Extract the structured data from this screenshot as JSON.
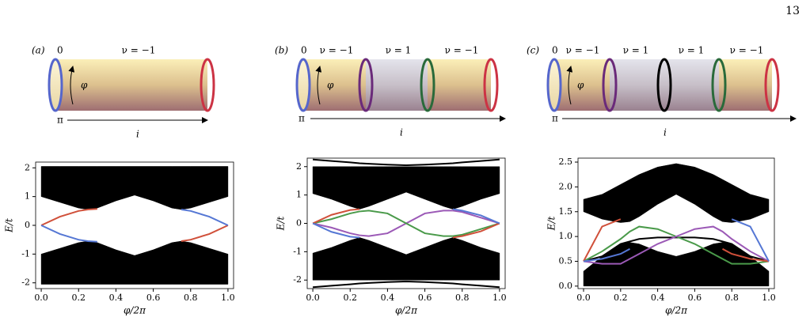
{
  "page_number": "13",
  "diagrams": [
    {
      "panel": "(a)",
      "left": "0",
      "bottom": "π",
      "angle": "φ",
      "axis": "i",
      "regions": [
        "ν = −1"
      ]
    },
    {
      "panel": "(b)",
      "left": "0",
      "bottom": "π",
      "angle": "φ",
      "axis": "i",
      "regions": [
        "ν = −1",
        "ν = 1",
        "ν = −1"
      ]
    },
    {
      "panel": "(c)",
      "left": "0",
      "bottom": "π",
      "angle": "φ",
      "axis": "i",
      "regions": [
        "ν = −1",
        "ν = 1",
        "ν = 1",
        "ν = −1"
      ]
    }
  ],
  "chart_data": [
    {
      "type": "line",
      "xlabel": "φ/2π",
      "ylabel": "E/t",
      "x": [
        0,
        0.1,
        0.2,
        0.25,
        0.3,
        0.4,
        0.5,
        0.6,
        0.7,
        0.75,
        0.8,
        0.9,
        1.0
      ],
      "xlim": [
        -0.03,
        1.03
      ],
      "ylim": [
        -2.2,
        2.2
      ],
      "xticks": [
        {
          "value": 0,
          "label": "0.0"
        },
        {
          "value": 0.2,
          "label": "0.2"
        },
        {
          "value": 0.4,
          "label": "0.4"
        },
        {
          "value": 0.6,
          "label": "0.6"
        },
        {
          "value": 0.8,
          "label": "0.8"
        },
        {
          "value": 1,
          "label": "1.0"
        }
      ],
      "yticks": [
        -2,
        -1,
        0,
        1,
        2
      ],
      "series": [
        {
          "color": "#000000",
          "values": [
            2.05,
            2.05,
            2.05,
            2.05,
            2.05,
            2.05,
            2.05,
            2.05,
            2.05,
            2.05,
            2.05,
            2.05,
            2.05
          ],
          "values_low": [
            1.0,
            0.8,
            0.6,
            0.55,
            0.6,
            0.85,
            1.05,
            0.85,
            0.6,
            0.55,
            0.6,
            0.8,
            1.0
          ]
        },
        {
          "color": "#000000",
          "values": [
            -1.0,
            -0.8,
            -0.6,
            -0.55,
            -0.6,
            -0.85,
            -1.05,
            -0.85,
            -0.6,
            -0.55,
            -0.6,
            -0.8,
            -1.0
          ],
          "values_low": [
            -2.05,
            -2.05,
            -2.05,
            -2.05,
            -2.05,
            -2.05,
            -2.05,
            -2.05,
            -2.05,
            -2.05,
            -2.05,
            -2.05,
            -2.05
          ]
        },
        {
          "color": "#d0503a",
          "values": [
            0,
            0.3,
            0.5,
            0.55,
            0.57,
            null,
            null,
            null,
            null,
            -0.55,
            -0.5,
            -0.3,
            0
          ]
        },
        {
          "color": "#5577d4",
          "values": [
            0,
            -0.3,
            -0.5,
            -0.55,
            -0.57,
            null,
            null,
            null,
            null,
            0.55,
            0.5,
            0.3,
            0
          ]
        }
      ]
    },
    {
      "type": "line",
      "xlabel": "φ/2π",
      "ylabel": "E/t",
      "x": [
        0,
        0.1,
        0.2,
        0.25,
        0.3,
        0.4,
        0.5,
        0.6,
        0.7,
        0.75,
        0.8,
        0.9,
        1.0
      ],
      "xlim": [
        -0.03,
        1.03
      ],
      "ylim": [
        -2.3,
        2.3
      ],
      "xticks": [
        {
          "value": 0,
          "label": "0.0"
        },
        {
          "value": 0.2,
          "label": "0.2"
        },
        {
          "value": 0.4,
          "label": "0.4"
        },
        {
          "value": 0.6,
          "label": "0.6"
        },
        {
          "value": 0.8,
          "label": "0.8"
        },
        {
          "value": 1,
          "label": "1.0"
        }
      ],
      "yticks": [
        -2,
        -1,
        0,
        1,
        2
      ],
      "series": [
        {
          "color": "#000000",
          "values": [
            2.0,
            2.0,
            2.0,
            2.0,
            2.0,
            2.0,
            2.0,
            2.0,
            2.0,
            2.0,
            2.0,
            2.0,
            2.0
          ],
          "values_low": [
            1.05,
            0.85,
            0.6,
            0.5,
            0.6,
            0.85,
            1.1,
            0.85,
            0.6,
            0.5,
            0.6,
            0.85,
            1.05
          ]
        },
        {
          "color": "#000000",
          "values": [
            -1.05,
            -0.85,
            -0.6,
            -0.5,
            -0.6,
            -0.85,
            -1.1,
            -0.85,
            -0.6,
            -0.5,
            -0.6,
            -0.85,
            -1.05
          ],
          "values_low": [
            -2.0,
            -2.0,
            -2.0,
            -2.0,
            -2.0,
            -2.0,
            -2.0,
            -2.0,
            -2.0,
            -2.0,
            -2.0,
            -2.0,
            -2.0
          ]
        },
        {
          "color": "#000000",
          "values": [
            2.25,
            2.2,
            2.15,
            2.12,
            2.1,
            2.07,
            2.05,
            2.07,
            2.1,
            2.12,
            2.15,
            2.2,
            2.25
          ]
        },
        {
          "color": "#000000",
          "values": [
            -2.25,
            -2.2,
            -2.15,
            -2.12,
            -2.1,
            -2.07,
            -2.05,
            -2.07,
            -2.1,
            -2.12,
            -2.15,
            -2.2,
            -2.25
          ]
        },
        {
          "color": "#9b59b6",
          "values": [
            0,
            -0.15,
            -0.35,
            -0.42,
            -0.45,
            -0.35,
            0,
            0.35,
            0.45,
            0.45,
            0.4,
            0.2,
            0
          ]
        },
        {
          "color": "#4a9a4a",
          "values": [
            0,
            0.15,
            0.35,
            0.42,
            0.45,
            0.35,
            0,
            -0.35,
            -0.45,
            -0.45,
            -0.4,
            -0.2,
            0
          ]
        },
        {
          "color": "#d0503a",
          "values": [
            0,
            0.3,
            0.47,
            0.5,
            null,
            null,
            null,
            null,
            null,
            -0.5,
            -0.45,
            -0.28,
            0
          ]
        },
        {
          "color": "#5577d4",
          "values": [
            0,
            -0.3,
            -0.47,
            -0.5,
            null,
            null,
            null,
            null,
            null,
            0.5,
            0.45,
            0.28,
            0
          ]
        }
      ]
    },
    {
      "type": "line",
      "xlabel": "φ/2π",
      "ylabel": "E/t",
      "x": [
        0,
        0.1,
        0.2,
        0.25,
        0.3,
        0.4,
        0.5,
        0.6,
        0.7,
        0.75,
        0.8,
        0.9,
        1.0
      ],
      "xlim": [
        -0.03,
        1.03
      ],
      "ylim": [
        -0.05,
        2.58
      ],
      "xticks": [
        {
          "value": 0,
          "label": "0.0"
        },
        {
          "value": 0.2,
          "label": "0.2"
        },
        {
          "value": 0.4,
          "label": "0.4"
        },
        {
          "value": 0.6,
          "label": "0.6"
        },
        {
          "value": 0.8,
          "label": "0.8"
        },
        {
          "value": 1,
          "label": "1.0"
        }
      ],
      "yticks": [
        {
          "value": 0,
          "label": "0.0"
        },
        {
          "value": 0.5,
          "label": "0.5"
        },
        {
          "value": 1,
          "label": "1.0"
        },
        {
          "value": 1.5,
          "label": "1.5"
        },
        {
          "value": 2,
          "label": "2.0"
        },
        {
          "value": 2.5,
          "label": "2.5"
        }
      ],
      "series": [
        {
          "color": "#000000",
          "values": [
            1.75,
            1.85,
            2.05,
            2.15,
            2.25,
            2.4,
            2.47,
            2.4,
            2.25,
            2.15,
            2.05,
            1.85,
            1.75
          ],
          "values_low": [
            1.5,
            1.35,
            1.28,
            1.3,
            1.4,
            1.65,
            1.85,
            1.65,
            1.4,
            1.3,
            1.28,
            1.35,
            1.5
          ]
        },
        {
          "color": "#000000",
          "values": [
            0.3,
            0.6,
            0.85,
            0.88,
            0.85,
            0.7,
            0.6,
            0.7,
            0.85,
            0.88,
            0.85,
            0.6,
            0.3
          ],
          "values_low": [
            0,
            0,
            0,
            0,
            0,
            0,
            0,
            0,
            0,
            0,
            0,
            0,
            0
          ]
        },
        {
          "color": "#000000",
          "values": [
            0.5,
            0.6,
            0.85,
            0.9,
            0.95,
            0.98,
            0.98,
            0.98,
            0.95,
            0.9,
            0.85,
            0.6,
            0.5
          ]
        },
        {
          "color": "#4a9a4a",
          "values": [
            0.5,
            0.7,
            0.95,
            1.1,
            1.2,
            1.15,
            1.0,
            0.85,
            0.65,
            0.55,
            0.45,
            0.45,
            0.5
          ]
        },
        {
          "color": "#9b59b6",
          "values": [
            0.5,
            0.45,
            0.45,
            0.55,
            0.65,
            0.85,
            1.0,
            1.15,
            1.2,
            1.1,
            0.95,
            0.7,
            0.5
          ]
        },
        {
          "color": "#d0503a",
          "values": [
            0.5,
            1.2,
            1.35,
            null,
            null,
            null,
            null,
            null,
            null,
            0.75,
            0.65,
            0.55,
            0.5
          ]
        },
        {
          "color": "#5577d4",
          "values": [
            0.5,
            0.55,
            0.65,
            0.75,
            null,
            null,
            null,
            null,
            null,
            null,
            1.35,
            1.2,
            0.5
          ]
        }
      ]
    }
  ]
}
